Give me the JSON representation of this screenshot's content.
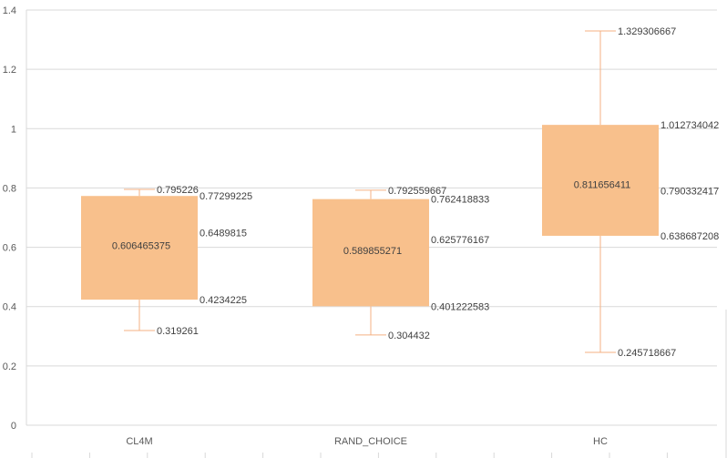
{
  "chart_data": {
    "type": "box",
    "title": "",
    "xlabel": "",
    "ylabel": "",
    "ylim": [
      0,
      1.4
    ],
    "yticks": [
      0,
      0.2,
      0.4,
      0.6,
      0.8,
      1,
      1.2,
      1.4
    ],
    "ytick_labels": [
      "0",
      "0.2",
      "0.4",
      "0.6",
      "0.8",
      "1",
      "1.2",
      "1.4"
    ],
    "grid": true,
    "box_color": "#F8C08C",
    "whisker_color": "#F4B183",
    "categories": [
      "CL4M",
      "RAND_CHOICE",
      "HC"
    ],
    "boxes": [
      {
        "category": "CL4M",
        "min": 0.319261,
        "q1": 0.4234225,
        "median": 0.6489815,
        "mean": 0.606465375,
        "q3": 0.77299225,
        "max": 0.795226,
        "labels": {
          "min": "0.319261",
          "q1": "0.4234225",
          "median": "0.6489815",
          "mean": "0.606465375",
          "q3": "0.77299225",
          "max": "0.795226"
        }
      },
      {
        "category": "RAND_CHOICE",
        "min": 0.304432,
        "q1": 0.401222583,
        "median": 0.625776167,
        "mean": 0.589855271,
        "q3": 0.762418833,
        "max": 0.792559667,
        "labels": {
          "min": "0.304432",
          "q1": "0.401222583",
          "median": "0.625776167",
          "mean": "0.589855271",
          "q3": "0.762418833",
          "max": "0.792559667"
        }
      },
      {
        "category": "HC",
        "min": 0.245718667,
        "q1": 0.638687208,
        "median": 0.790332417,
        "mean": 0.811656411,
        "q3": 1.012734042,
        "max": 1.329306667,
        "labels": {
          "min": "0.245718667",
          "q1": "0.638687208",
          "median": "0.790332417",
          "mean": "0.811656411",
          "q3": "1.012734042",
          "max": "1.329306667"
        }
      }
    ]
  }
}
